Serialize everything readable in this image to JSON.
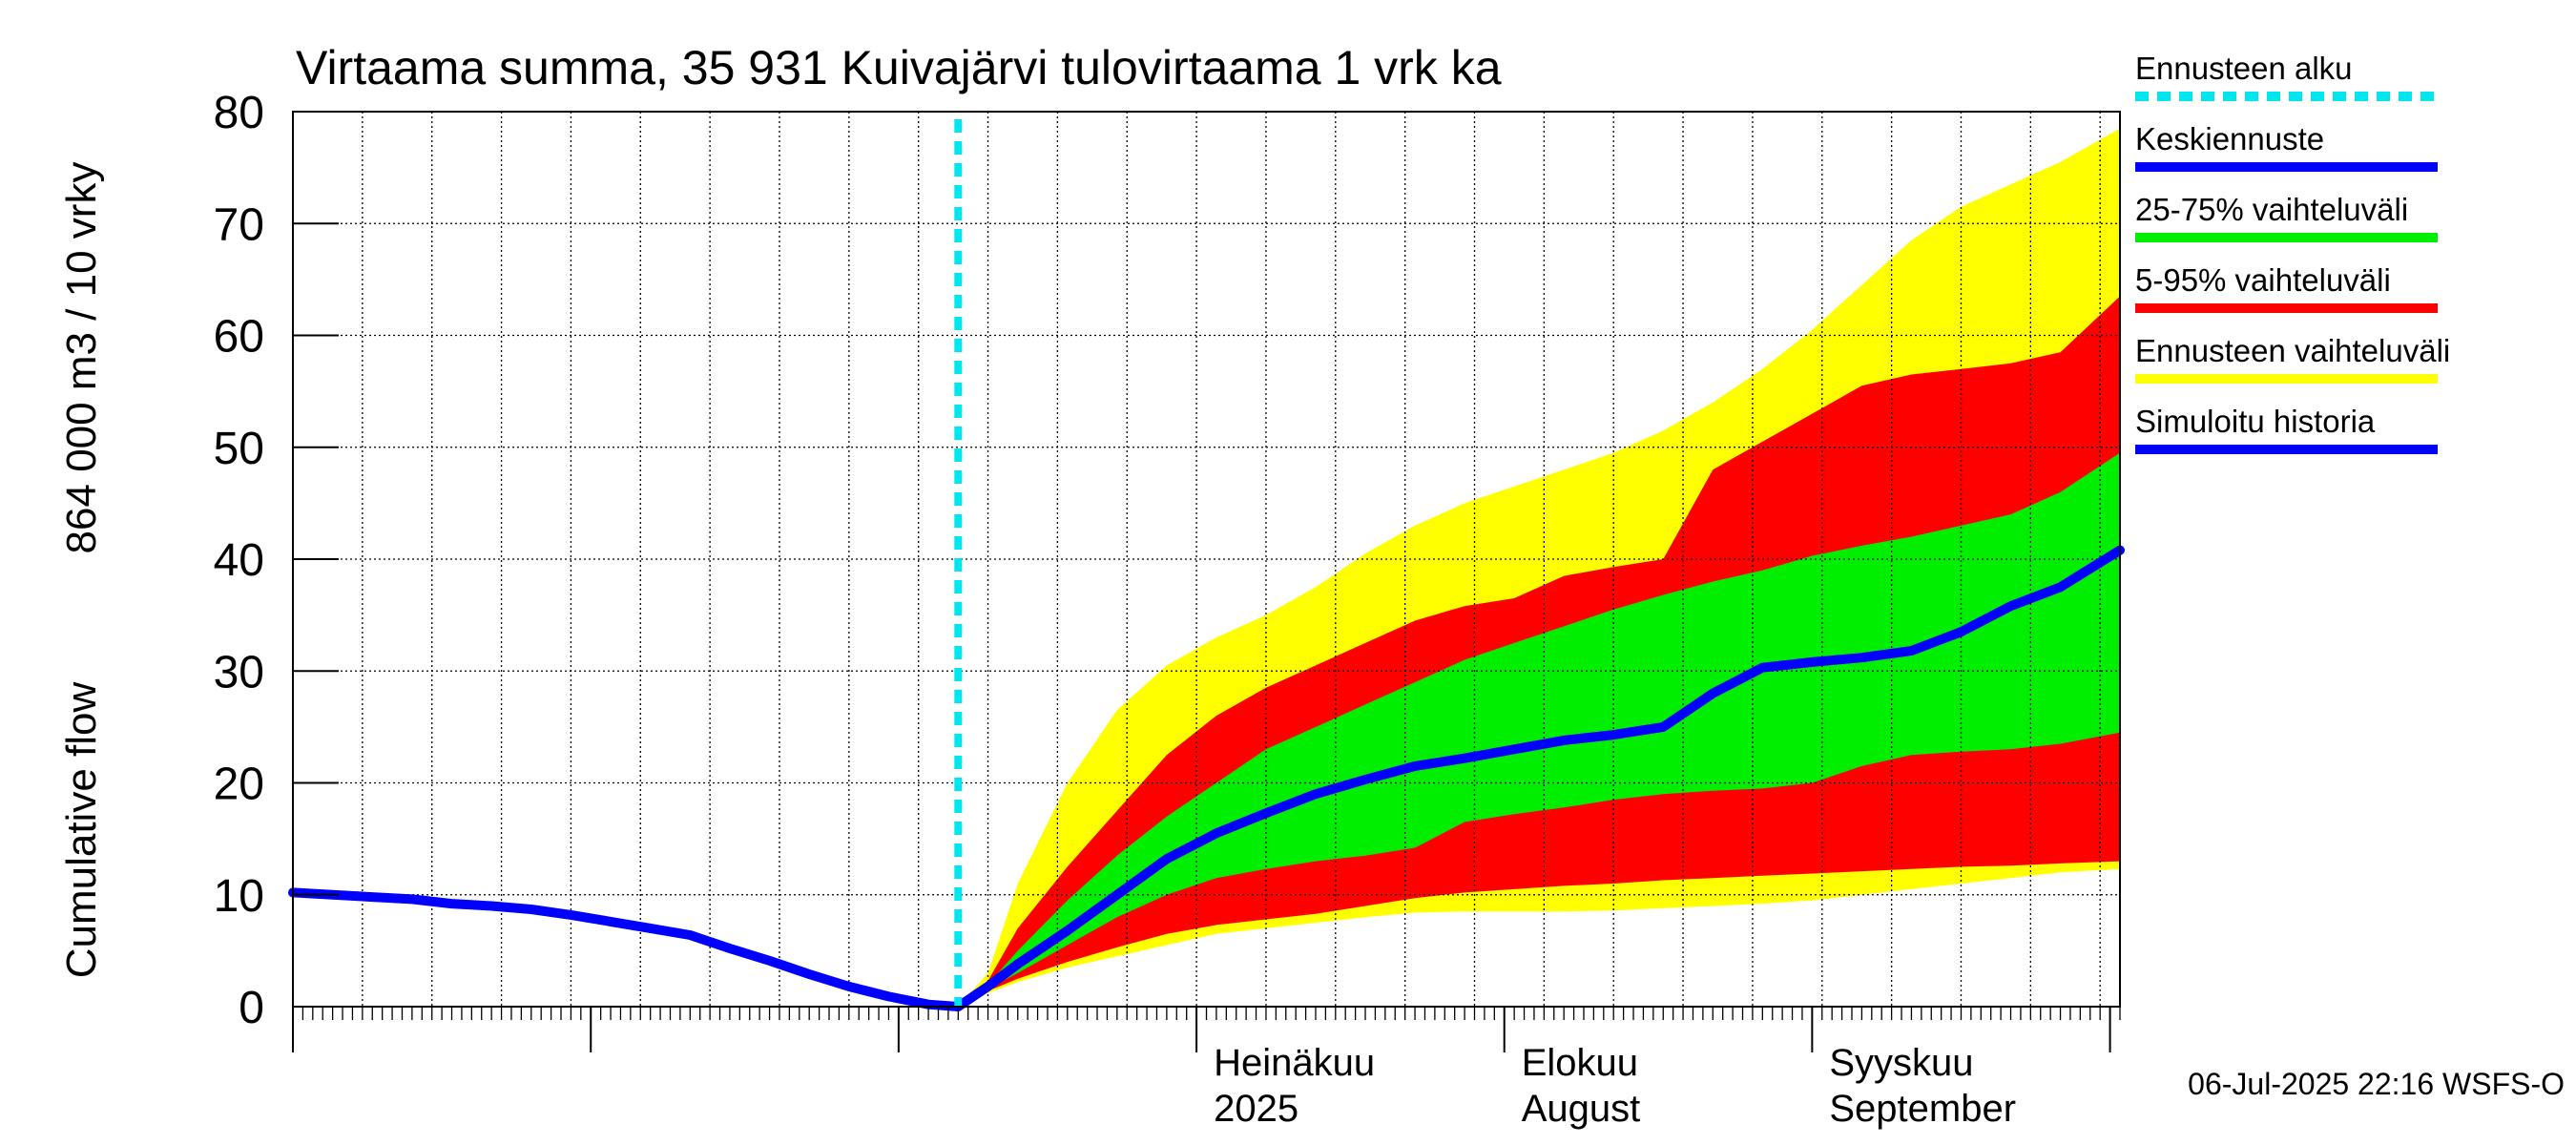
{
  "chart_data": {
    "type": "area",
    "title": "Virtaama summa, 35 931 Kuivajärvi tulovirtaama 1 vrk ka",
    "ylabel_lines": [
      "Cumulative flow",
      "864 000 m3 / 10 vrky"
    ],
    "xlabel": "",
    "ylim": [
      0,
      80
    ],
    "y_ticks": [
      0,
      10,
      20,
      30,
      40,
      50,
      60,
      70,
      80
    ],
    "x_range": [
      "2025-04-01",
      "2025-10-02"
    ],
    "x_unit": "date",
    "grid": true,
    "legend_position": "right",
    "forecast_start": "2025-06-07",
    "month_labels": [
      {
        "date": "2025-07-01",
        "line1": "Heinäkuu",
        "line2": "2025"
      },
      {
        "date": "2025-08-01",
        "line1": "Elokuu",
        "line2": "August"
      },
      {
        "date": "2025-09-01",
        "line1": "Syyskuu",
        "line2": "September"
      }
    ],
    "legend": [
      {
        "key": "forecast_start",
        "label": "Ennusteen alku",
        "color": "#00e5ee",
        "style": "dashed"
      },
      {
        "key": "mean",
        "label": "Keskiennuste",
        "color": "#0000ff",
        "style": "solid"
      },
      {
        "key": "p25_75",
        "label": "25-75% vaihteluväli",
        "color": "#00ee00",
        "style": "solid"
      },
      {
        "key": "p5_95",
        "label": "5-95% vaihteluväli",
        "color": "#ff0000",
        "style": "solid"
      },
      {
        "key": "range",
        "label": "Ennusteen vaihteluväli",
        "color": "#ffff00",
        "style": "solid"
      },
      {
        "key": "history",
        "label": "Simuloitu historia",
        "color": "#0000ff",
        "style": "solid"
      }
    ],
    "series": [
      {
        "key": "history",
        "x": [
          "2025-04-01",
          "2025-04-05",
          "2025-04-09",
          "2025-04-13",
          "2025-04-17",
          "2025-04-21",
          "2025-04-25",
          "2025-04-29",
          "2025-05-03",
          "2025-05-07",
          "2025-05-11",
          "2025-05-15",
          "2025-05-19",
          "2025-05-23",
          "2025-05-27",
          "2025-05-31",
          "2025-06-04",
          "2025-06-07"
        ],
        "y": [
          10.2,
          10.0,
          9.8,
          9.6,
          9.2,
          9.0,
          8.7,
          8.2,
          7.6,
          7.0,
          6.4,
          5.2,
          4.1,
          2.9,
          1.8,
          0.9,
          0.2,
          0.0
        ]
      },
      {
        "key": "mean",
        "x": [
          "2025-06-07",
          "2025-06-10",
          "2025-06-13",
          "2025-06-18",
          "2025-06-23",
          "2025-06-28",
          "2025-07-03",
          "2025-07-08",
          "2025-07-13",
          "2025-07-18",
          "2025-07-23",
          "2025-07-28",
          "2025-08-02",
          "2025-08-07",
          "2025-08-12",
          "2025-08-17",
          "2025-08-22",
          "2025-08-27",
          "2025-09-01",
          "2025-09-06",
          "2025-09-11",
          "2025-09-16",
          "2025-09-21",
          "2025-09-26",
          "2025-10-02"
        ],
        "y": [
          0.0,
          1.8,
          3.8,
          6.8,
          10.0,
          13.2,
          15.5,
          17.3,
          19.0,
          20.3,
          21.5,
          22.2,
          23.0,
          23.8,
          24.3,
          25.0,
          28.0,
          30.3,
          30.8,
          31.2,
          31.8,
          33.5,
          35.8,
          37.5,
          40.8
        ]
      },
      {
        "key": "p25_75",
        "x": [
          "2025-06-07",
          "2025-06-10",
          "2025-06-13",
          "2025-06-18",
          "2025-06-23",
          "2025-06-28",
          "2025-07-03",
          "2025-07-08",
          "2025-07-13",
          "2025-07-18",
          "2025-07-23",
          "2025-07-28",
          "2025-08-02",
          "2025-08-07",
          "2025-08-12",
          "2025-08-17",
          "2025-08-22",
          "2025-08-27",
          "2025-09-01",
          "2025-09-06",
          "2025-09-11",
          "2025-09-16",
          "2025-09-21",
          "2025-09-26",
          "2025-10-02"
        ],
        "upper": [
          0.0,
          2.0,
          5.0,
          9.5,
          13.5,
          17.0,
          20.0,
          23.0,
          25.0,
          27.0,
          29.0,
          31.0,
          32.5,
          34.0,
          35.5,
          36.8,
          38.0,
          39.0,
          40.3,
          41.2,
          42.0,
          43.0,
          44.0,
          46.0,
          49.5
        ],
        "lower": [
          0.0,
          1.6,
          3.0,
          5.5,
          8.0,
          10.0,
          11.5,
          12.3,
          13.0,
          13.5,
          14.2,
          16.5,
          17.2,
          17.8,
          18.5,
          19.0,
          19.3,
          19.5,
          20.0,
          21.5,
          22.5,
          22.8,
          23.0,
          23.5,
          24.5
        ]
      },
      {
        "key": "p5_95",
        "x": [
          "2025-06-07",
          "2025-06-10",
          "2025-06-13",
          "2025-06-18",
          "2025-06-23",
          "2025-06-28",
          "2025-07-03",
          "2025-07-08",
          "2025-07-13",
          "2025-07-18",
          "2025-07-23",
          "2025-07-28",
          "2025-08-02",
          "2025-08-07",
          "2025-08-12",
          "2025-08-17",
          "2025-08-22",
          "2025-08-27",
          "2025-09-01",
          "2025-09-06",
          "2025-09-11",
          "2025-09-16",
          "2025-09-21",
          "2025-09-26",
          "2025-10-02"
        ],
        "upper": [
          0.0,
          2.3,
          7.0,
          12.5,
          17.5,
          22.5,
          26.0,
          28.5,
          30.5,
          32.5,
          34.5,
          35.8,
          36.5,
          38.5,
          39.3,
          40.0,
          48.0,
          50.5,
          53.0,
          55.5,
          56.5,
          57.0,
          57.5,
          58.5,
          63.5
        ],
        "lower": [
          0.0,
          1.4,
          2.5,
          4.0,
          5.3,
          6.5,
          7.3,
          7.8,
          8.3,
          9.0,
          9.7,
          10.2,
          10.5,
          10.8,
          11.0,
          11.3,
          11.5,
          11.7,
          11.9,
          12.1,
          12.3,
          12.5,
          12.6,
          12.8,
          13.0
        ]
      },
      {
        "key": "range",
        "x": [
          "2025-06-07",
          "2025-06-10",
          "2025-06-13",
          "2025-06-18",
          "2025-06-23",
          "2025-06-28",
          "2025-07-03",
          "2025-07-08",
          "2025-07-13",
          "2025-07-18",
          "2025-07-23",
          "2025-07-28",
          "2025-08-02",
          "2025-08-07",
          "2025-08-12",
          "2025-08-17",
          "2025-08-22",
          "2025-08-27",
          "2025-09-01",
          "2025-09-06",
          "2025-09-11",
          "2025-09-16",
          "2025-09-21",
          "2025-09-26",
          "2025-10-02"
        ],
        "upper": [
          0.0,
          3.0,
          11.0,
          20.0,
          26.5,
          30.5,
          33.0,
          35.0,
          37.5,
          40.5,
          43.0,
          45.0,
          46.5,
          48.0,
          49.5,
          51.5,
          54.0,
          57.0,
          60.5,
          64.5,
          68.5,
          71.5,
          73.5,
          75.5,
          78.5
        ],
        "lower": [
          0.0,
          1.2,
          2.2,
          3.5,
          4.5,
          5.5,
          6.5,
          7.0,
          7.5,
          8.0,
          8.4,
          8.5,
          8.5,
          8.5,
          8.6,
          8.8,
          9.0,
          9.2,
          9.5,
          10.0,
          10.5,
          11.0,
          11.5,
          12.0,
          12.3
        ]
      }
    ]
  },
  "timestamp_text": "06-Jul-2025 22:16 WSFS-O"
}
